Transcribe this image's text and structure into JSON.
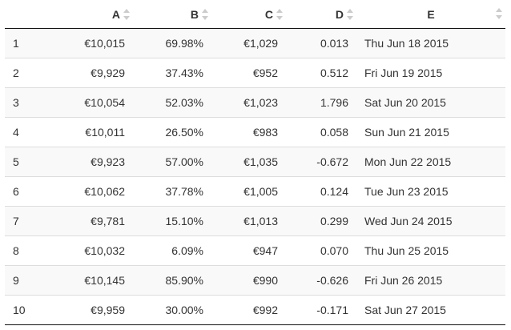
{
  "table": {
    "headers": [
      "",
      "A",
      "B",
      "C",
      "D",
      "E"
    ],
    "rows": [
      [
        "1",
        "€10,015",
        "69.98%",
        "€1,029",
        "0.013",
        "Thu Jun 18 2015"
      ],
      [
        "2",
        "€9,929",
        "37.43%",
        "€952",
        "0.512",
        "Fri Jun 19 2015"
      ],
      [
        "3",
        "€10,054",
        "52.03%",
        "€1,023",
        "1.796",
        "Sat Jun 20 2015"
      ],
      [
        "4",
        "€10,011",
        "26.50%",
        "€983",
        "0.058",
        "Sun Jun 21 2015"
      ],
      [
        "5",
        "€9,923",
        "57.00%",
        "€1,035",
        "-0.672",
        "Mon Jun 22 2015"
      ],
      [
        "6",
        "€10,062",
        "37.78%",
        "€1,005",
        "0.124",
        "Tue Jun 23 2015"
      ],
      [
        "7",
        "€9,781",
        "15.10%",
        "€1,013",
        "0.299",
        "Wed Jun 24 2015"
      ],
      [
        "8",
        "€10,032",
        "6.09%",
        "€947",
        "0.070",
        "Thu Jun 25 2015"
      ],
      [
        "9",
        "€10,145",
        "85.90%",
        "€990",
        "-0.626",
        "Fri Jun 26 2015"
      ],
      [
        "10",
        "€9,959",
        "30.00%",
        "€992",
        "-0.171",
        "Sat Jun 27 2015"
      ]
    ]
  },
  "icons": {
    "sort": "sort-both-icon"
  },
  "colors": {
    "stripe": "#f9f9f9",
    "row_border": "#dddddd",
    "header_border": "#111111",
    "sort_icon": "#cccccc"
  }
}
